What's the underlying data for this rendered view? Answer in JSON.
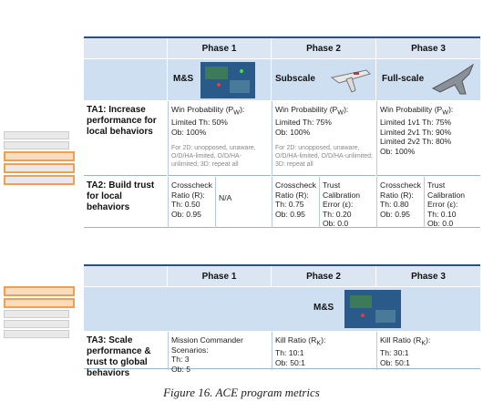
{
  "top": {
    "header": [
      "Phase 1",
      "Phase 2",
      "Phase 3"
    ],
    "media": [
      "M&S",
      "Subscale",
      "Full-scale"
    ],
    "ta1": {
      "label": "TA1: Increase performance for local behaviors",
      "cells": [
        {
          "lines": [
            [
              "Win Probability (P",
              "W",
              "):"
            ],
            "Limited Th: 50%",
            "Ob: 100%"
          ],
          "note": "For 2D: unopposed, unaware, O/D/HA-limited, O/D/HA-unlimited; 3D: repeat all"
        },
        {
          "lines": [
            [
              "Win Probability (P",
              "W",
              "):"
            ],
            "Limited Th: 75%",
            "Ob: 100%"
          ],
          "note": "For 2D: unopposed, unaware, O/D/HA-limited, O/D/HA-unlimited; 3D: repeat all"
        },
        {
          "lines": [
            [
              "Win Probability (P",
              "W",
              "):"
            ],
            "Limited 1v1 Th: 75%",
            "Limited 2v1 Th: 90%",
            "Limited 2v2 Th: 80%",
            "Ob: 100%"
          ]
        }
      ]
    },
    "ta2": {
      "label": "TA2: Build trust for local behaviors",
      "cells": [
        [
          {
            "lines": [
              "Crosscheck Ratio (R):",
              "Th: 0.50",
              "Ob: 0.95"
            ]
          },
          {
            "lines": [
              "N/A"
            ]
          }
        ],
        [
          {
            "lines": [
              "Crosscheck Ratio (R):",
              "Th: 0.75",
              "Ob: 0.95"
            ]
          },
          {
            "lines": [
              "Trust Calibration Error (ε):",
              "Th: 0.20",
              "Ob: 0.0"
            ]
          }
        ],
        [
          {
            "lines": [
              "Crosscheck Ratio (R):",
              "Th: 0.80",
              "Ob: 0.95"
            ]
          },
          {
            "lines": [
              "Trust Calibration Error (ε):",
              "Th: 0.10",
              "Ob: 0.0"
            ]
          }
        ]
      ]
    }
  },
  "bottom": {
    "header": [
      "Phase 1",
      "Phase 2",
      "Phase 3"
    ],
    "media": "M&S",
    "ta3": {
      "label": "TA3: Scale performance & trust to global behaviors",
      "cells": [
        {
          "lines": [
            "Mission Commander Scenarios:",
            "Th: 3",
            "Ob: 5"
          ]
        },
        {
          "lines": [
            [
              "Kill Ratio (R",
              "K",
              "):"
            ],
            "Th: 10:1",
            "Ob: 50:1"
          ]
        },
        {
          "lines": [
            [
              "Kill Ratio (R",
              "K",
              "):"
            ],
            "Th: 30:1",
            "Ob: 50:1"
          ]
        }
      ]
    }
  },
  "caption": "Figure 16.  ACE program metrics"
}
